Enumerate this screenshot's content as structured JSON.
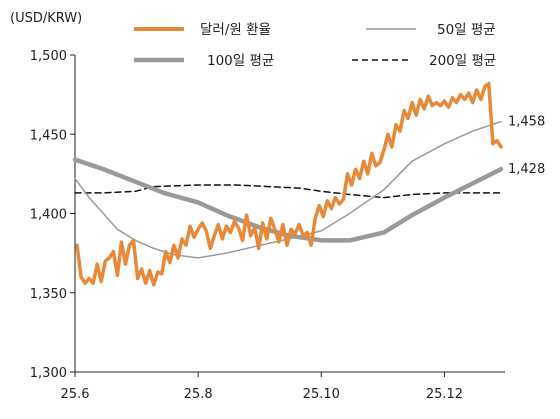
{
  "chart_data": {
    "type": "line",
    "unit": "(USD/KRW)",
    "title": "",
    "xlabel": "",
    "ylabel": "",
    "legend": [
      "달러/원 환율",
      "50일 평균",
      "100일 평균",
      "200일 평균"
    ],
    "ylim": [
      1300,
      1500
    ],
    "yticks": [
      1300,
      1350,
      1400,
      1450,
      1500
    ],
    "ytick_labels": [
      "1,300",
      "1,350",
      "1,400",
      "1,450",
      "1,500"
    ],
    "xlim": [
      "2025-06-01",
      "2025-12-31"
    ],
    "xticks": [
      {
        "date": "2025-06-01",
        "label": "25.6"
      },
      {
        "date": "2025-08-01",
        "label": "25.8"
      },
      {
        "date": "2025-10-01",
        "label": "25.10"
      },
      {
        "date": "2025-12-01",
        "label": "25.12"
      }
    ],
    "colors": {
      "fx": "#E8893A",
      "ma": "#9a9a9a",
      "ma200": "#111111"
    },
    "end_labels": [
      {
        "series": "50일 평균",
        "value": 1458,
        "text": "1,458"
      },
      {
        "series": "100일 평균",
        "value": 1428,
        "text": "1,428"
      }
    ],
    "series": [
      {
        "name": "달러/원 환율",
        "style": "fx",
        "points": [
          [
            "2025-06-02",
            1380
          ],
          [
            "2025-06-04",
            1360
          ],
          [
            "2025-06-06",
            1356
          ],
          [
            "2025-06-08",
            1359
          ],
          [
            "2025-06-10",
            1356
          ],
          [
            "2025-06-12",
            1368
          ],
          [
            "2025-06-14",
            1357
          ],
          [
            "2025-06-16",
            1370
          ],
          [
            "2025-06-18",
            1372
          ],
          [
            "2025-06-20",
            1376
          ],
          [
            "2025-06-22",
            1361
          ],
          [
            "2025-06-24",
            1382
          ],
          [
            "2025-06-26",
            1368
          ],
          [
            "2025-06-28",
            1380
          ],
          [
            "2025-06-30",
            1383
          ],
          [
            "2025-07-02",
            1359
          ],
          [
            "2025-07-04",
            1365
          ],
          [
            "2025-07-06",
            1356
          ],
          [
            "2025-07-08",
            1364
          ],
          [
            "2025-07-10",
            1355
          ],
          [
            "2025-07-12",
            1363
          ],
          [
            "2025-07-14",
            1362
          ],
          [
            "2025-07-16",
            1376
          ],
          [
            "2025-07-18",
            1369
          ],
          [
            "2025-07-20",
            1380
          ],
          [
            "2025-07-22",
            1372
          ],
          [
            "2025-07-24",
            1384
          ],
          [
            "2025-07-26",
            1380
          ],
          [
            "2025-07-28",
            1392
          ],
          [
            "2025-07-30",
            1385
          ],
          [
            "2025-08-01",
            1390
          ],
          [
            "2025-08-03",
            1394
          ],
          [
            "2025-08-05",
            1389
          ],
          [
            "2025-08-07",
            1378
          ],
          [
            "2025-08-09",
            1386
          ],
          [
            "2025-08-11",
            1393
          ],
          [
            "2025-08-13",
            1384
          ],
          [
            "2025-08-15",
            1392
          ],
          [
            "2025-08-17",
            1388
          ],
          [
            "2025-08-19",
            1395
          ],
          [
            "2025-08-21",
            1391
          ],
          [
            "2025-08-23",
            1383
          ],
          [
            "2025-08-25",
            1399
          ],
          [
            "2025-08-27",
            1386
          ],
          [
            "2025-08-29",
            1391
          ],
          [
            "2025-08-31",
            1378
          ],
          [
            "2025-09-02",
            1394
          ],
          [
            "2025-09-04",
            1384
          ],
          [
            "2025-09-06",
            1397
          ],
          [
            "2025-09-08",
            1390
          ],
          [
            "2025-09-10",
            1382
          ],
          [
            "2025-09-12",
            1393
          ],
          [
            "2025-09-14",
            1380
          ],
          [
            "2025-09-16",
            1390
          ],
          [
            "2025-09-18",
            1387
          ],
          [
            "2025-09-20",
            1393
          ],
          [
            "2025-09-22",
            1386
          ],
          [
            "2025-09-24",
            1388
          ],
          [
            "2025-09-26",
            1380
          ],
          [
            "2025-09-28",
            1397
          ],
          [
            "2025-09-30",
            1405
          ],
          [
            "2025-10-02",
            1398
          ],
          [
            "2025-10-04",
            1408
          ],
          [
            "2025-10-06",
            1403
          ],
          [
            "2025-10-08",
            1410
          ],
          [
            "2025-10-10",
            1406
          ],
          [
            "2025-10-12",
            1409
          ],
          [
            "2025-10-14",
            1425
          ],
          [
            "2025-10-16",
            1418
          ],
          [
            "2025-10-18",
            1428
          ],
          [
            "2025-10-20",
            1422
          ],
          [
            "2025-10-22",
            1433
          ],
          [
            "2025-10-24",
            1425
          ],
          [
            "2025-10-26",
            1438
          ],
          [
            "2025-10-28",
            1430
          ],
          [
            "2025-10-30",
            1432
          ],
          [
            "2025-11-01",
            1440
          ],
          [
            "2025-11-03",
            1450
          ],
          [
            "2025-11-05",
            1442
          ],
          [
            "2025-11-07",
            1456
          ],
          [
            "2025-11-09",
            1452
          ],
          [
            "2025-11-11",
            1465
          ],
          [
            "2025-11-13",
            1460
          ],
          [
            "2025-11-15",
            1470
          ],
          [
            "2025-11-17",
            1462
          ],
          [
            "2025-11-19",
            1472
          ],
          [
            "2025-11-21",
            1466
          ],
          [
            "2025-11-23",
            1474
          ],
          [
            "2025-11-25",
            1468
          ],
          [
            "2025-11-27",
            1470
          ],
          [
            "2025-11-29",
            1468
          ],
          [
            "2025-12-01",
            1471
          ],
          [
            "2025-12-03",
            1467
          ],
          [
            "2025-12-05",
            1473
          ],
          [
            "2025-12-07",
            1470
          ],
          [
            "2025-12-09",
            1475
          ],
          [
            "2025-12-11",
            1472
          ],
          [
            "2025-12-13",
            1476
          ],
          [
            "2025-12-15",
            1470
          ],
          [
            "2025-12-17",
            1478
          ],
          [
            "2025-12-19",
            1472
          ],
          [
            "2025-12-21",
            1480
          ],
          [
            "2025-12-23",
            1482
          ],
          [
            "2025-12-25",
            1444
          ],
          [
            "2025-12-27",
            1446
          ],
          [
            "2025-12-29",
            1442
          ]
        ]
      },
      {
        "name": "50일 평균",
        "style": "ma50",
        "points": [
          [
            "2025-06-01",
            1422
          ],
          [
            "2025-06-08",
            1410
          ],
          [
            "2025-06-15",
            1400
          ],
          [
            "2025-06-22",
            1390
          ],
          [
            "2025-07-01",
            1383
          ],
          [
            "2025-07-10",
            1378
          ],
          [
            "2025-07-20",
            1374
          ],
          [
            "2025-08-01",
            1372
          ],
          [
            "2025-08-15",
            1375
          ],
          [
            "2025-09-01",
            1380
          ],
          [
            "2025-09-15",
            1384
          ],
          [
            "2025-10-01",
            1389
          ],
          [
            "2025-10-15",
            1400
          ],
          [
            "2025-11-01",
            1415
          ],
          [
            "2025-11-15",
            1433
          ],
          [
            "2025-12-01",
            1444
          ],
          [
            "2025-12-15",
            1452
          ],
          [
            "2025-12-29",
            1458
          ]
        ]
      },
      {
        "name": "100일 평균",
        "style": "ma100",
        "points": [
          [
            "2025-06-01",
            1434
          ],
          [
            "2025-06-15",
            1428
          ],
          [
            "2025-07-01",
            1420
          ],
          [
            "2025-07-15",
            1413
          ],
          [
            "2025-08-01",
            1407
          ],
          [
            "2025-08-15",
            1399
          ],
          [
            "2025-09-01",
            1391
          ],
          [
            "2025-09-15",
            1386
          ],
          [
            "2025-10-01",
            1383
          ],
          [
            "2025-10-15",
            1383
          ],
          [
            "2025-11-01",
            1388
          ],
          [
            "2025-11-15",
            1399
          ],
          [
            "2025-12-01",
            1410
          ],
          [
            "2025-12-15",
            1419
          ],
          [
            "2025-12-29",
            1428
          ]
        ]
      },
      {
        "name": "200일 평균",
        "style": "ma200",
        "points": [
          [
            "2025-06-01",
            1413
          ],
          [
            "2025-06-15",
            1413
          ],
          [
            "2025-07-01",
            1414
          ],
          [
            "2025-07-10",
            1417
          ],
          [
            "2025-08-01",
            1418
          ],
          [
            "2025-08-20",
            1418
          ],
          [
            "2025-09-05",
            1417
          ],
          [
            "2025-09-20",
            1416
          ],
          [
            "2025-10-01",
            1414
          ],
          [
            "2025-10-15",
            1412
          ],
          [
            "2025-11-01",
            1410
          ],
          [
            "2025-11-15",
            1412
          ],
          [
            "2025-12-01",
            1413
          ],
          [
            "2025-12-29",
            1413
          ]
        ]
      }
    ]
  }
}
